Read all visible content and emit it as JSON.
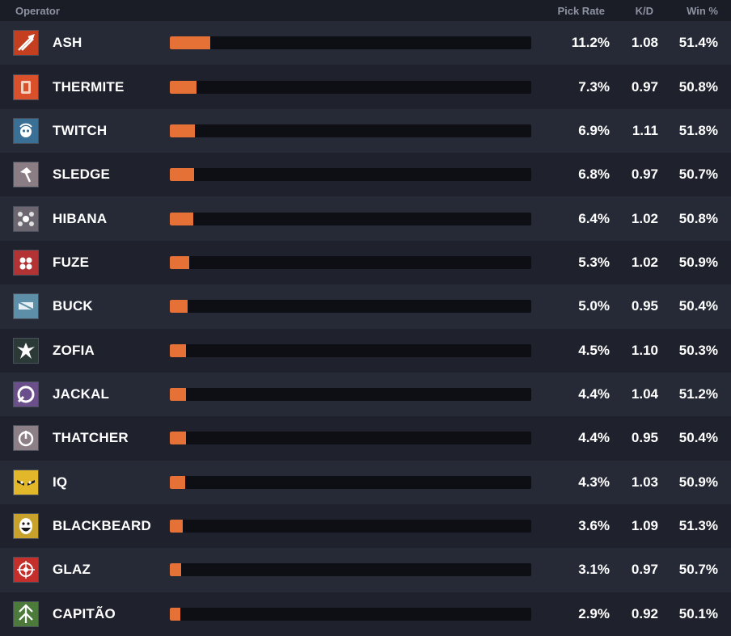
{
  "header": {
    "operator": "Operator",
    "pick_rate": "Pick Rate",
    "kd": "K/D",
    "win": "Win %"
  },
  "bar_max_percent": 100,
  "accent_color": "#e57136",
  "rows": [
    {
      "name": "ASH",
      "pick": "11.2%",
      "kd": "1.08",
      "win": "51.4%",
      "fill": 11.2,
      "icon": "ash-icon",
      "icon_bg": "#c43f1f"
    },
    {
      "name": "THERMITE",
      "pick": "7.3%",
      "kd": "0.97",
      "win": "50.8%",
      "fill": 7.3,
      "icon": "thermite-icon",
      "icon_bg": "#d9502a"
    },
    {
      "name": "TWITCH",
      "pick": "6.9%",
      "kd": "1.11",
      "win": "51.8%",
      "fill": 6.9,
      "icon": "twitch-icon",
      "icon_bg": "#3a6f96"
    },
    {
      "name": "SLEDGE",
      "pick": "6.8%",
      "kd": "0.97",
      "win": "50.7%",
      "fill": 6.8,
      "icon": "sledge-icon",
      "icon_bg": "#8a7d84"
    },
    {
      "name": "HIBANA",
      "pick": "6.4%",
      "kd": "1.02",
      "win": "50.8%",
      "fill": 6.4,
      "icon": "hibana-icon",
      "icon_bg": "#6b6670"
    },
    {
      "name": "FUZE",
      "pick": "5.3%",
      "kd": "1.02",
      "win": "50.9%",
      "fill": 5.3,
      "icon": "fuze-icon",
      "icon_bg": "#b33234"
    },
    {
      "name": "BUCK",
      "pick": "5.0%",
      "kd": "0.95",
      "win": "50.4%",
      "fill": 5.0,
      "icon": "buck-icon",
      "icon_bg": "#5d8fa8"
    },
    {
      "name": "ZOFIA",
      "pick": "4.5%",
      "kd": "1.10",
      "win": "50.3%",
      "fill": 4.5,
      "icon": "zofia-icon",
      "icon_bg": "#2b3a36"
    },
    {
      "name": "JACKAL",
      "pick": "4.4%",
      "kd": "1.04",
      "win": "51.2%",
      "fill": 4.4,
      "icon": "jackal-icon",
      "icon_bg": "#6a4f8a"
    },
    {
      "name": "THATCHER",
      "pick": "4.4%",
      "kd": "0.95",
      "win": "50.4%",
      "fill": 4.4,
      "icon": "thatcher-icon",
      "icon_bg": "#8c7f86"
    },
    {
      "name": "IQ",
      "pick": "4.3%",
      "kd": "1.03",
      "win": "50.9%",
      "fill": 4.3,
      "icon": "iq-icon",
      "icon_bg": "#e2b82a"
    },
    {
      "name": "BLACKBEARD",
      "pick": "3.6%",
      "kd": "1.09",
      "win": "51.3%",
      "fill": 3.6,
      "icon": "blackbeard-icon",
      "icon_bg": "#c9a22b"
    },
    {
      "name": "GLAZ",
      "pick": "3.1%",
      "kd": "0.97",
      "win": "50.7%",
      "fill": 3.1,
      "icon": "glaz-icon",
      "icon_bg": "#c42f2b"
    },
    {
      "name": "CAPITÃO",
      "pick": "2.9%",
      "kd": "0.92",
      "win": "50.1%",
      "fill": 2.9,
      "icon": "capitao-icon",
      "icon_bg": "#4c7a3a"
    }
  ]
}
